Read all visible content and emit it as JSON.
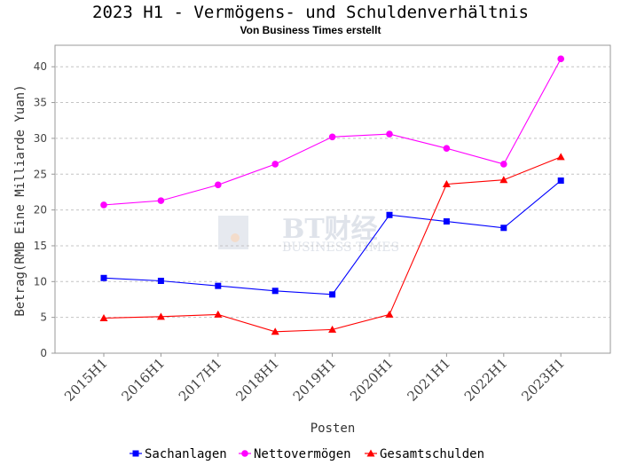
{
  "chart_data": {
    "type": "line",
    "title": "2023 H1 - Vermögens- und Schuldenverhältnis",
    "subtitle": "Von Business Times erstellt",
    "xlabel": "Posten",
    "ylabel": "Betrag(RMB Eine Milliarde Yuan)",
    "categories": [
      "2015H1",
      "2016H1",
      "2017H1",
      "2018H1",
      "2019H1",
      "2020H1",
      "2021H1",
      "2022H1",
      "2023H1"
    ],
    "ylim": [
      0,
      43
    ],
    "yticks": [
      0,
      5,
      10,
      15,
      20,
      25,
      30,
      35,
      40
    ],
    "grid": true,
    "legend_position": "bottom",
    "series": [
      {
        "name": "Sachanlagen",
        "color": "#0000ff",
        "marker": "square",
        "values": [
          10.5,
          10.1,
          9.4,
          8.7,
          8.2,
          19.3,
          18.4,
          17.5,
          24.1
        ]
      },
      {
        "name": "Nettovermögen",
        "color": "#ff00ff",
        "marker": "circle",
        "values": [
          20.7,
          21.3,
          23.5,
          26.4,
          30.2,
          30.6,
          28.6,
          26.4,
          41.1
        ]
      },
      {
        "name": "Gesamtschulden",
        "color": "#ff0000",
        "marker": "triangle",
        "values": [
          4.9,
          5.1,
          5.4,
          3.0,
          3.3,
          5.4,
          23.6,
          24.2,
          27.4
        ]
      }
    ]
  },
  "watermark": {
    "logo_text": "BT财经",
    "sub_text": "BUSINESS TIMES"
  }
}
